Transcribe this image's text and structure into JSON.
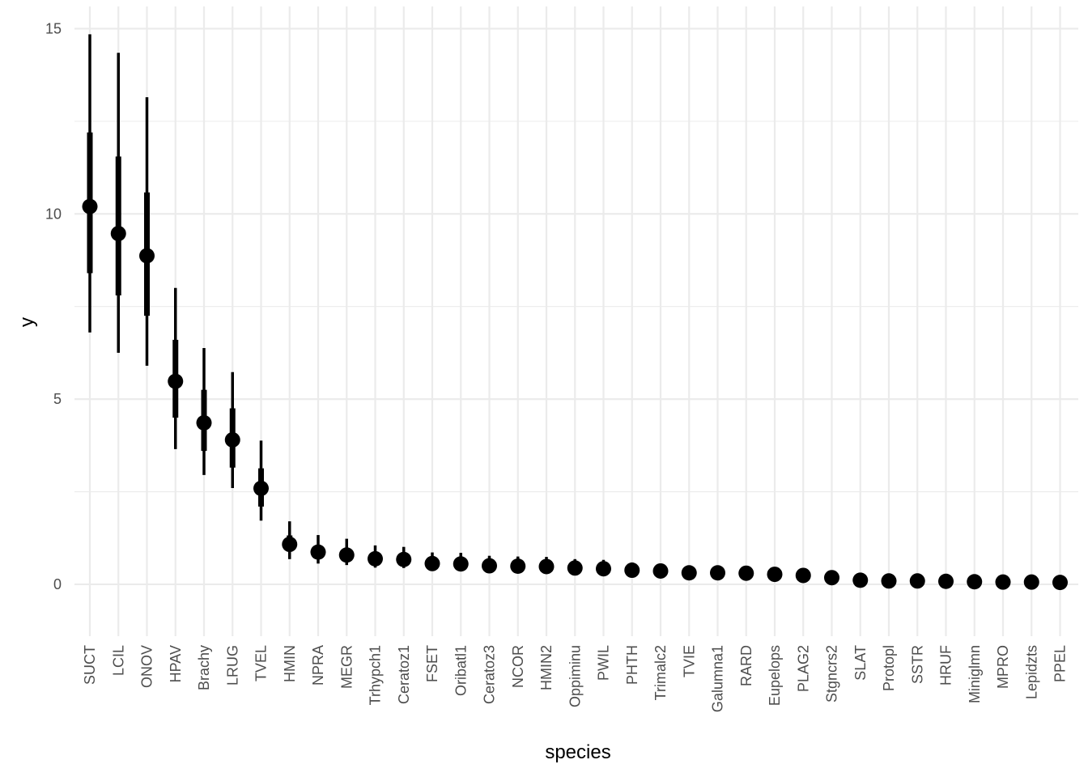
{
  "chart_data": {
    "type": "scatter",
    "subtype": "pointrange",
    "title": "",
    "xlabel": "species",
    "ylabel": "y",
    "ylim": [
      -1.4,
      15.6
    ],
    "yticks": [
      0,
      5,
      10,
      15
    ],
    "grid": true,
    "theme": "minimal",
    "colors": {
      "marks": "#000000",
      "grid": "#ebebeb",
      "tick_text": "#4d4d4d",
      "title_text": "#000000"
    },
    "categories": [
      "SUCT",
      "LCIL",
      "ONOV",
      "HPAV",
      "Brachy",
      "LRUG",
      "TVEL",
      "HMIN",
      "NPRA",
      "MEGR",
      "Trhypch1",
      "Ceratoz1",
      "FSET",
      "Oribatl1",
      "Ceratoz3",
      "NCOR",
      "HMIN2",
      "Oppiminu",
      "PWIL",
      "PHTH",
      "Trimalc2",
      "TVIE",
      "Galumna1",
      "RARD",
      "Eupelops",
      "PLAG2",
      "Stgncrs2",
      "SLAT",
      "Protopl",
      "SSTR",
      "HRUF",
      "Miniglmn",
      "MPRO",
      "Lepidzts",
      "PPEL"
    ],
    "series": [
      {
        "estimate": [
          10.2,
          9.47,
          8.87,
          5.48,
          4.36,
          3.9,
          2.59,
          1.08,
          0.87,
          0.79,
          0.69,
          0.67,
          0.56,
          0.55,
          0.5,
          0.49,
          0.48,
          0.44,
          0.42,
          0.38,
          0.36,
          0.31,
          0.31,
          0.3,
          0.27,
          0.24,
          0.18,
          0.11,
          0.09,
          0.09,
          0.08,
          0.07,
          0.06,
          0.06,
          0.05
        ],
        "inner_low": [
          8.4,
          7.8,
          7.25,
          4.5,
          3.6,
          3.15,
          2.1,
          0.88,
          0.72,
          0.66,
          0.58,
          0.56,
          0.47,
          0.46,
          0.42,
          0.41,
          0.4,
          0.37,
          0.35,
          0.31,
          0.3,
          0.26,
          0.26,
          0.25,
          0.22,
          0.2,
          0.15,
          0.09,
          0.07,
          0.07,
          0.06,
          0.05,
          0.05,
          0.05,
          0.04
        ],
        "inner_high": [
          12.2,
          11.55,
          10.58,
          6.6,
          5.25,
          4.75,
          3.13,
          1.32,
          1.05,
          0.96,
          0.83,
          0.81,
          0.68,
          0.67,
          0.61,
          0.59,
          0.58,
          0.53,
          0.51,
          0.46,
          0.44,
          0.38,
          0.37,
          0.36,
          0.33,
          0.29,
          0.22,
          0.13,
          0.11,
          0.11,
          0.1,
          0.09,
          0.08,
          0.07,
          0.06
        ],
        "outer_low": [
          6.8,
          6.25,
          5.9,
          3.65,
          2.95,
          2.6,
          1.72,
          0.68,
          0.56,
          0.52,
          0.45,
          0.44,
          0.37,
          0.36,
          0.33,
          0.32,
          0.31,
          0.29,
          0.27,
          0.24,
          0.23,
          0.2,
          0.2,
          0.2,
          0.17,
          0.15,
          0.11,
          0.07,
          0.05,
          0.05,
          0.05,
          0.04,
          0.03,
          0.03,
          0.03
        ],
        "outer_high": [
          14.85,
          14.35,
          13.15,
          8.0,
          6.38,
          5.73,
          3.88,
          1.7,
          1.33,
          1.23,
          1.05,
          1.01,
          0.86,
          0.85,
          0.77,
          0.75,
          0.74,
          0.68,
          0.66,
          0.59,
          0.56,
          0.49,
          0.48,
          0.46,
          0.42,
          0.38,
          0.29,
          0.17,
          0.14,
          0.14,
          0.13,
          0.12,
          0.1,
          0.09,
          0.08
        ]
      }
    ]
  }
}
